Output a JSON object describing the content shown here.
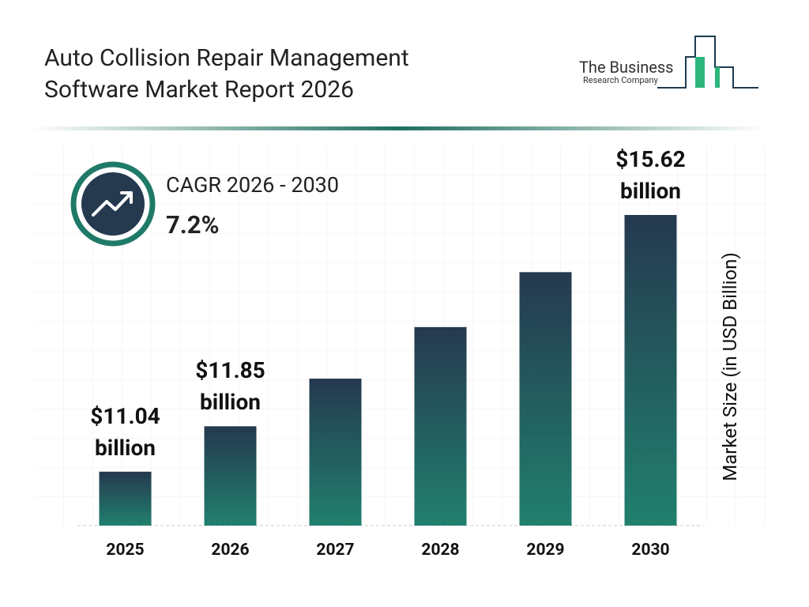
{
  "title": "Auto Collision Repair Management Software Market Report 2026",
  "logo": {
    "line1": "The Business",
    "line2": "Research Company"
  },
  "cagr": {
    "label": "CAGR 2026 - 2030",
    "value": "7.2%"
  },
  "chart_data": {
    "type": "bar",
    "categories": [
      "2025",
      "2026",
      "2027",
      "2028",
      "2029",
      "2030"
    ],
    "values": [
      11.04,
      11.85,
      12.7,
      13.62,
      14.6,
      15.62
    ],
    "value_labels": [
      "$11.04 billion",
      "$11.85 billion",
      null,
      null,
      null,
      "$15.62 billion"
    ],
    "y_label": "Market Size (in USD Billion)",
    "color": "#25394f",
    "color_bottom": "#21806e"
  }
}
